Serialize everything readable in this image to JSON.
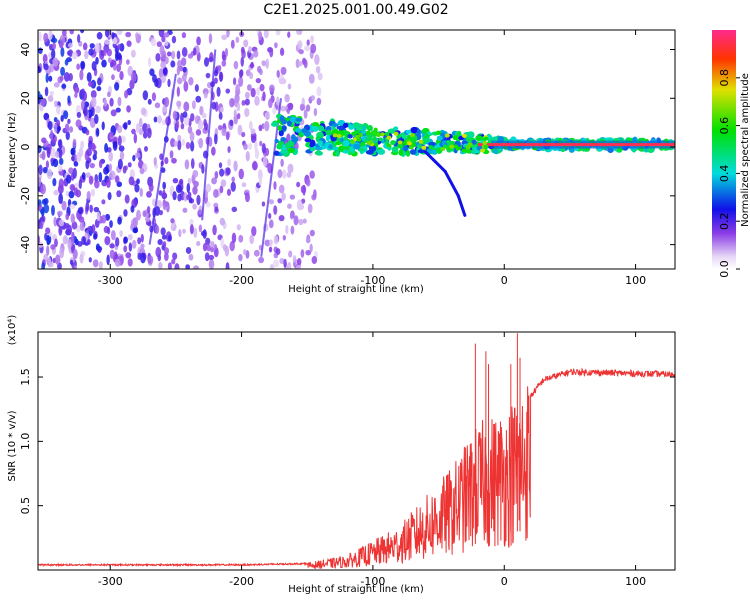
{
  "chart_data": [
    {
      "type": "heatmap",
      "title": "C2E1.2025.001.00.49.G02",
      "xlabel": "Height of straight line (km)",
      "ylabel": "Frequency (Hz)",
      "xlim": [
        -355,
        130
      ],
      "ylim": [
        -50,
        48
      ],
      "xticks": [
        -300,
        -200,
        -100,
        0,
        100
      ],
      "xtick_labels": [
        "-300",
        "-200",
        "-100",
        "0",
        "100"
      ],
      "yticks": [
        -40,
        -20,
        0,
        20,
        40
      ],
      "ytick_labels": [
        "-40",
        "-20",
        "0",
        "20",
        "40"
      ],
      "colorbar": {
        "label": "Normalized spectral amplitude",
        "range": [
          0,
          1
        ],
        "ticks": [
          0,
          0.2,
          0.4,
          0.6,
          0.8
        ],
        "tick_labels": [
          "0.0",
          "0.2",
          "0.4",
          "0.6",
          "0.8"
        ]
      },
      "features": [
        {
          "name": "diffuse-noise",
          "x_range": [
            -355,
            -140
          ],
          "f_range": [
            -50,
            48
          ],
          "amplitude": [
            0.05,
            0.3
          ]
        },
        {
          "name": "strong-tone",
          "x_range": [
            -175,
            130
          ],
          "freq": [
            [
              -175,
              5
            ],
            [
              -100,
              3
            ],
            [
              -50,
              2
            ],
            [
              0,
              1
            ],
            [
              130,
              1
            ]
          ],
          "amplitude_range": [
            0.3,
            1.0
          ]
        },
        {
          "name": "descending-branch",
          "points": [
            [
              -60,
              -2
            ],
            [
              -45,
              -10
            ],
            [
              -35,
              -20
            ],
            [
              -30,
              -28
            ]
          ],
          "amplitude": 0.25
        }
      ]
    },
    {
      "type": "line",
      "title": "",
      "xlabel": "Height of straight line (km)",
      "ylabel": "SNR (10 * v/v)",
      "yunit": "(x10⁴)",
      "xlim": [
        -355,
        130
      ],
      "ylim": [
        0,
        1.85
      ],
      "xticks": [
        -300,
        -200,
        -100,
        0,
        100
      ],
      "xtick_labels": [
        "-300",
        "-200",
        "-100",
        "0",
        "100"
      ],
      "yticks": [
        0.5,
        1.0,
        1.5
      ],
      "ytick_labels": [
        "0.5",
        "1.0",
        "1.5"
      ],
      "series": [
        {
          "color": "#ee3333",
          "envelope": [
            [
              -355,
              0.04
            ],
            [
              -200,
              0.04
            ],
            [
              -150,
              0.05
            ],
            [
              -120,
              0.1
            ],
            [
              -100,
              0.2
            ],
            [
              -80,
              0.3
            ],
            [
              -60,
              0.5
            ],
            [
              -40,
              0.7
            ],
            [
              -20,
              1.0
            ],
            [
              0,
              1.1
            ],
            [
              10,
              1.2
            ],
            [
              20,
              1.35
            ],
            [
              30,
              1.48
            ],
            [
              50,
              1.54
            ],
            [
              130,
              1.52
            ]
          ],
          "peaks": [
            [
              -22,
              1.76
            ],
            [
              -14,
              1.7
            ],
            [
              -12,
              1.6
            ],
            [
              -8,
              1.0
            ],
            [
              5,
              1.6
            ],
            [
              10,
              1.84
            ],
            [
              12,
              1.65
            ]
          ]
        }
      ]
    }
  ]
}
